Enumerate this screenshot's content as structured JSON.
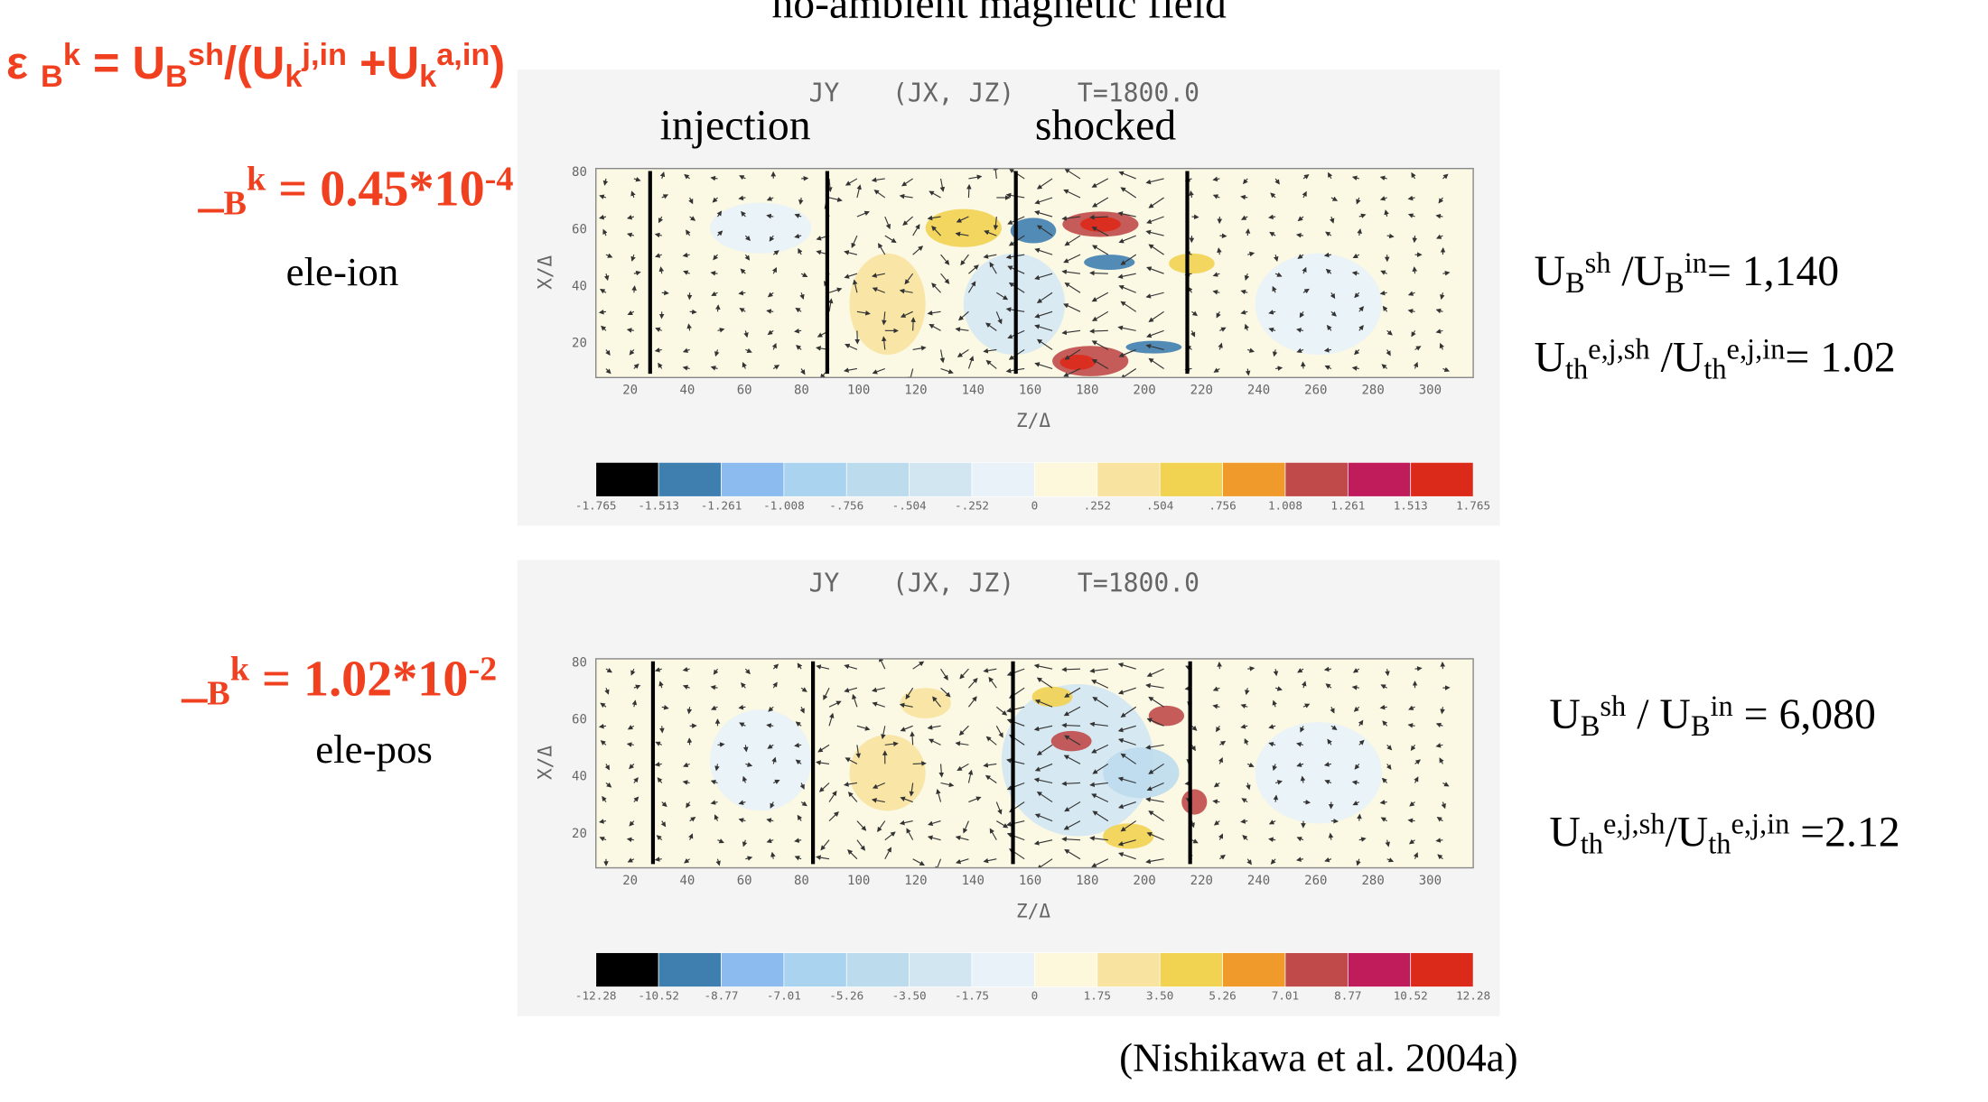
{
  "title": "no-ambient magnetic field",
  "formula": [
    "ε ",
    "B",
    "k",
    " = U",
    "B",
    "sh",
    "/(U",
    "k",
    "j,in",
    " +U",
    "k",
    "a,in",
    ")"
  ],
  "colorbar_colors": [
    "#000000",
    "#3f7fb0",
    "#8bbbef",
    "#a9d3ee",
    "#bcdcee",
    "#d2e6f2",
    "#e8f2f8",
    "#fdf8dc",
    "#f8e3a0",
    "#f2d251",
    "#ef9a2a",
    "#c04a4a",
    "#c01b5a",
    "#dc2a1a"
  ],
  "panels": [
    {
      "epsilon": [
        "_",
        "B",
        "k",
        " = 0.45*10",
        "-4"
      ],
      "pair": "ele-ion",
      "plot": {
        "title": [
          "JY",
          "(JX, JZ)",
          "T=1800.0"
        ],
        "annotations": [
          "injection",
          "shocked"
        ],
        "x_label": "Z/Δ",
        "y_label": "X/Δ",
        "x_ticks": [
          "20",
          "40",
          "60",
          "80",
          "100",
          "120",
          "140",
          "160",
          "180",
          "200",
          "220",
          "240",
          "260",
          "280",
          "300"
        ],
        "y_ticks": [
          "20",
          "40",
          "60",
          "80"
        ],
        "colorbar_labels": [
          "-1.765",
          "-1.513",
          "-1.261",
          "-1.008",
          "-.756",
          "-.504",
          "-.252",
          "0",
          ".252",
          ".504",
          ".756",
          "1.008",
          "1.261",
          "1.513",
          "1.765"
        ]
      },
      "ratios": [
        [
          "U",
          "B",
          "sh",
          " /U",
          "B",
          "in",
          "= 1,140"
        ],
        [
          "U",
          "th",
          "e,j,sh",
          " /U",
          "th",
          "e,j,in",
          "= 1.02"
        ]
      ]
    },
    {
      "epsilon": [
        "_",
        "B",
        "k",
        " = 1.02*10",
        "-2"
      ],
      "pair": "ele-pos",
      "plot": {
        "title": [
          "JY",
          "(JX, JZ)",
          "T=1800.0"
        ],
        "x_label": "Z/Δ",
        "y_label": "X/Δ",
        "x_ticks": [
          "20",
          "40",
          "60",
          "80",
          "100",
          "120",
          "140",
          "160",
          "180",
          "200",
          "220",
          "240",
          "260",
          "280",
          "300"
        ],
        "y_ticks": [
          "20",
          "40",
          "60",
          "80"
        ],
        "colorbar_labels": [
          "-12.28",
          "-10.52",
          "-8.77",
          "-7.01",
          "-5.26",
          "-3.50",
          "-1.75",
          "0",
          "1.75",
          "3.50",
          "5.26",
          "7.01",
          "8.77",
          "10.52",
          "12.28"
        ]
      },
      "ratios": [
        [
          "U",
          "B",
          "sh",
          " / U",
          "B",
          "in",
          " = 6,080"
        ],
        [
          "U",
          "th",
          "e,j,sh",
          "/U",
          "th",
          "e,j,in",
          " =2.12"
        ]
      ]
    }
  ],
  "citation": "(Nishikawa et al. 2004a)"
}
